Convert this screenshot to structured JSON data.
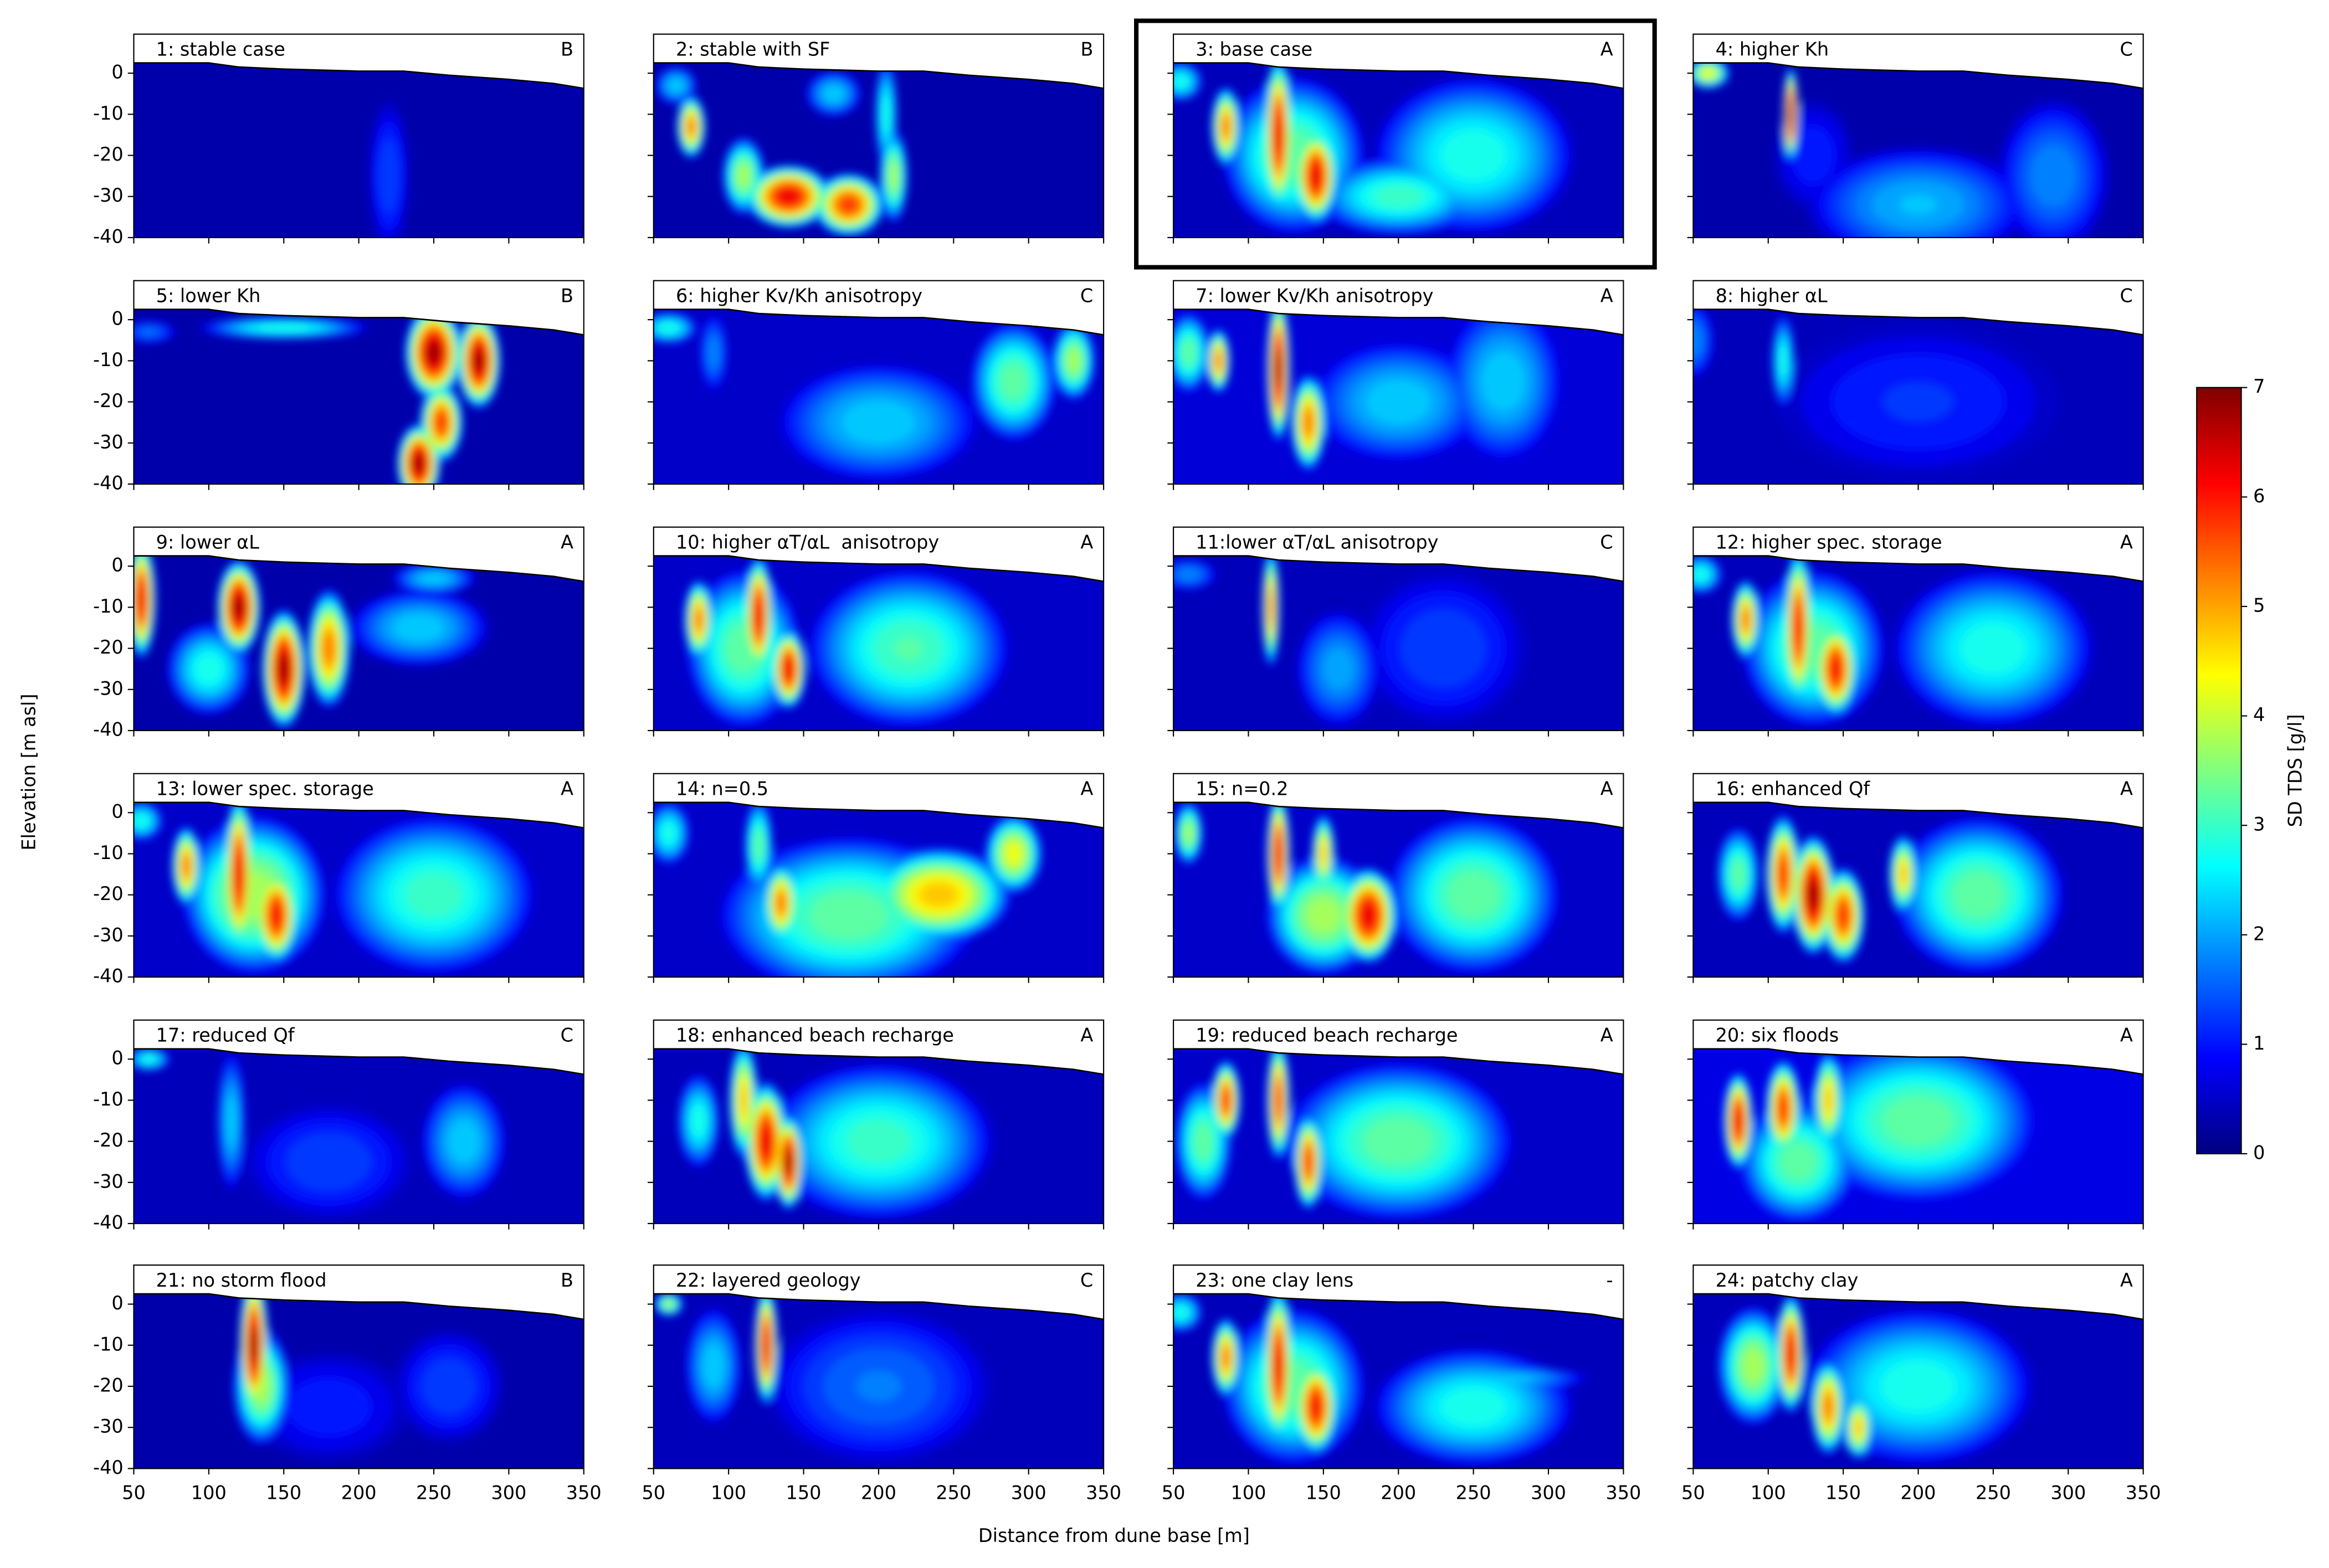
{
  "shared": {
    "xlabel": "Distance from dune base [m]",
    "ylabel": "Elevation [m asl]",
    "xlim": [
      50,
      350
    ],
    "xticks": [
      50,
      100,
      150,
      200,
      250,
      300,
      350
    ],
    "ylim": [
      -40,
      9.5
    ],
    "yticks": [
      0,
      -10,
      -20,
      -30,
      -40
    ],
    "surface": {
      "x": [
        50,
        100,
        120,
        150,
        200,
        230,
        260,
        300,
        330,
        350
      ],
      "y": [
        2.5,
        2.5,
        1.5,
        1,
        0.5,
        0.5,
        -0.5,
        -1.5,
        -2.5,
        -3.7
      ]
    },
    "colorbar": {
      "label": "SD TDS [g/l]",
      "lim": [
        0,
        7
      ],
      "ticks": [
        0,
        1,
        2,
        3,
        4,
        5,
        6,
        7
      ]
    }
  },
  "chart_data": [
    {
      "type": "heatmap",
      "title": "1: stable case",
      "label": "B",
      "background": 0.3,
      "blobs": [
        {
          "x": 220,
          "y": -25,
          "rx": 15,
          "ry": 20,
          "value": 1.5
        }
      ]
    },
    {
      "type": "heatmap",
      "title": "2: stable with SF",
      "label": "B",
      "background": 0.3,
      "blobs": [
        {
          "x": 65,
          "y": -3,
          "rx": 15,
          "ry": 5,
          "value": 2.5
        },
        {
          "x": 75,
          "y": -13,
          "rx": 10,
          "ry": 8,
          "value": 5.5
        },
        {
          "x": 110,
          "y": -25,
          "rx": 15,
          "ry": 10,
          "value": 4
        },
        {
          "x": 140,
          "y": -30,
          "rx": 30,
          "ry": 8,
          "value": 6.5
        },
        {
          "x": 180,
          "y": -32,
          "rx": 25,
          "ry": 8,
          "value": 6
        },
        {
          "x": 210,
          "y": -25,
          "rx": 10,
          "ry": 12,
          "value": 4
        },
        {
          "x": 205,
          "y": -10,
          "rx": 8,
          "ry": 15,
          "value": 3
        },
        {
          "x": 170,
          "y": -5,
          "rx": 20,
          "ry": 6,
          "value": 2.5
        }
      ]
    },
    {
      "type": "heatmap",
      "title": "3: base case",
      "label": "A",
      "background": 0.4,
      "highlighted": true,
      "blobs": [
        {
          "x": 55,
          "y": -2,
          "rx": 15,
          "ry": 5,
          "value": 3
        },
        {
          "x": 130,
          "y": -20,
          "rx": 50,
          "ry": 20,
          "value": 3.5
        },
        {
          "x": 250,
          "y": -20,
          "rx": 70,
          "ry": 20,
          "value": 3
        },
        {
          "x": 200,
          "y": -30,
          "rx": 60,
          "ry": 10,
          "value": 3.2
        },
        {
          "x": 85,
          "y": -13,
          "rx": 10,
          "ry": 10,
          "value": 5.5
        },
        {
          "x": 120,
          "y": -15,
          "rx": 10,
          "ry": 20,
          "value": 6.5
        },
        {
          "x": 145,
          "y": -25,
          "rx": 15,
          "ry": 12,
          "value": 6.5
        }
      ]
    },
    {
      "type": "heatmap",
      "title": "4: higher Kh",
      "label": "C",
      "background": 0.3,
      "blobs": [
        {
          "x": 60,
          "y": 0,
          "rx": 15,
          "ry": 4,
          "value": 4.5
        },
        {
          "x": 130,
          "y": -20,
          "rx": 30,
          "ry": 15,
          "value": 1.2
        },
        {
          "x": 200,
          "y": -32,
          "rx": 80,
          "ry": 15,
          "value": 2.3
        },
        {
          "x": 290,
          "y": -25,
          "rx": 40,
          "ry": 20,
          "value": 2
        },
        {
          "x": 115,
          "y": -10,
          "rx": 5,
          "ry": 12,
          "value": 7
        }
      ]
    },
    {
      "type": "heatmap",
      "title": "5: lower Kh",
      "label": "B",
      "background": 0.3,
      "blobs": [
        {
          "x": 60,
          "y": -3,
          "rx": 20,
          "ry": 3,
          "value": 1.8
        },
        {
          "x": 150,
          "y": -2,
          "rx": 60,
          "ry": 3,
          "value": 3
        },
        {
          "x": 250,
          "y": -8,
          "rx": 20,
          "ry": 12,
          "value": 7
        },
        {
          "x": 280,
          "y": -10,
          "rx": 15,
          "ry": 12,
          "value": 7
        },
        {
          "x": 255,
          "y": -25,
          "rx": 15,
          "ry": 10,
          "value": 6
        },
        {
          "x": 240,
          "y": -35,
          "rx": 15,
          "ry": 10,
          "value": 7
        }
      ]
    },
    {
      "type": "heatmap",
      "title": "6: higher Kv/Kh anisotropy",
      "label": "C",
      "background": 0.5,
      "blobs": [
        {
          "x": 60,
          "y": -2,
          "rx": 20,
          "ry": 4,
          "value": 3
        },
        {
          "x": 90,
          "y": -8,
          "rx": 10,
          "ry": 10,
          "value": 2
        },
        {
          "x": 200,
          "y": -25,
          "rx": 70,
          "ry": 15,
          "value": 2.5
        },
        {
          "x": 290,
          "y": -15,
          "rx": 30,
          "ry": 15,
          "value": 3.5
        },
        {
          "x": 330,
          "y": -10,
          "rx": 15,
          "ry": 10,
          "value": 4
        }
      ]
    },
    {
      "type": "heatmap",
      "title": "7: lower Kv/Kh anisotropy",
      "label": "A",
      "background": 0.6,
      "blobs": [
        {
          "x": 200,
          "y": -20,
          "rx": 60,
          "ry": 15,
          "value": 2.5
        },
        {
          "x": 270,
          "y": -15,
          "rx": 40,
          "ry": 20,
          "value": 2.5
        },
        {
          "x": 60,
          "y": -8,
          "rx": 15,
          "ry": 10,
          "value": 3.5
        },
        {
          "x": 80,
          "y": -10,
          "rx": 8,
          "ry": 8,
          "value": 5.5
        },
        {
          "x": 120,
          "y": -12,
          "rx": 8,
          "ry": 18,
          "value": 7
        },
        {
          "x": 140,
          "y": -25,
          "rx": 12,
          "ry": 12,
          "value": 5.5
        }
      ]
    },
    {
      "type": "heatmap",
      "title": "8: higher αL",
      "label": "C",
      "background": 0.4,
      "blobs": [
        {
          "x": 50,
          "y": -5,
          "rx": 15,
          "ry": 10,
          "value": 2
        },
        {
          "x": 110,
          "y": -10,
          "rx": 8,
          "ry": 12,
          "value": 3
        },
        {
          "x": 200,
          "y": -20,
          "rx": 100,
          "ry": 20,
          "value": 1.3
        }
      ]
    },
    {
      "type": "heatmap",
      "title": "9: lower αL",
      "label": "A",
      "background": 0.3,
      "blobs": [
        {
          "x": 100,
          "y": -25,
          "rx": 30,
          "ry": 12,
          "value": 3
        },
        {
          "x": 240,
          "y": -15,
          "rx": 50,
          "ry": 10,
          "value": 2.5
        },
        {
          "x": 250,
          "y": -3,
          "rx": 30,
          "ry": 4,
          "value": 2.5
        },
        {
          "x": 55,
          "y": -8,
          "rx": 10,
          "ry": 15,
          "value": 6.5
        },
        {
          "x": 120,
          "y": -10,
          "rx": 15,
          "ry": 12,
          "value": 7
        },
        {
          "x": 150,
          "y": -25,
          "rx": 15,
          "ry": 15,
          "value": 7
        },
        {
          "x": 180,
          "y": -20,
          "rx": 15,
          "ry": 15,
          "value": 5.5
        }
      ]
    },
    {
      "type": "heatmap",
      "title": "10: higher αT/αL  anisotropy",
      "label": "A",
      "background": 0.5,
      "blobs": [
        {
          "x": 110,
          "y": -20,
          "rx": 40,
          "ry": 20,
          "value": 3.5
        },
        {
          "x": 220,
          "y": -20,
          "rx": 70,
          "ry": 20,
          "value": 3.3
        },
        {
          "x": 80,
          "y": -13,
          "rx": 10,
          "ry": 10,
          "value": 5.5
        },
        {
          "x": 120,
          "y": -12,
          "rx": 10,
          "ry": 15,
          "value": 6.5
        },
        {
          "x": 140,
          "y": -25,
          "rx": 12,
          "ry": 10,
          "value": 6.5
        }
      ]
    },
    {
      "type": "heatmap",
      "title": "11:lower αT/αL anisotropy",
      "label": "C",
      "background": 0.4,
      "blobs": [
        {
          "x": 60,
          "y": -2,
          "rx": 20,
          "ry": 4,
          "value": 2
        },
        {
          "x": 160,
          "y": -25,
          "rx": 30,
          "ry": 15,
          "value": 2.2
        },
        {
          "x": 230,
          "y": -20,
          "rx": 60,
          "ry": 20,
          "value": 1.5
        },
        {
          "x": 115,
          "y": -10,
          "rx": 6,
          "ry": 15,
          "value": 5.5
        }
      ]
    },
    {
      "type": "heatmap",
      "title": "12: higher spec. storage",
      "label": "A",
      "background": 0.4,
      "blobs": [
        {
          "x": 55,
          "y": -2,
          "rx": 15,
          "ry": 5,
          "value": 3
        },
        {
          "x": 130,
          "y": -20,
          "rx": 50,
          "ry": 20,
          "value": 3.5
        },
        {
          "x": 250,
          "y": -20,
          "rx": 70,
          "ry": 20,
          "value": 3
        },
        {
          "x": 85,
          "y": -13,
          "rx": 10,
          "ry": 10,
          "value": 5.5
        },
        {
          "x": 120,
          "y": -15,
          "rx": 10,
          "ry": 20,
          "value": 6.3
        },
        {
          "x": 145,
          "y": -25,
          "rx": 15,
          "ry": 12,
          "value": 6.3
        }
      ]
    },
    {
      "type": "heatmap",
      "title": "13: lower spec. storage",
      "label": "A",
      "background": 0.5,
      "blobs": [
        {
          "x": 55,
          "y": -2,
          "rx": 15,
          "ry": 5,
          "value": 3
        },
        {
          "x": 130,
          "y": -20,
          "rx": 50,
          "ry": 20,
          "value": 4
        },
        {
          "x": 250,
          "y": -20,
          "rx": 70,
          "ry": 20,
          "value": 3.2
        },
        {
          "x": 85,
          "y": -13,
          "rx": 10,
          "ry": 10,
          "value": 5.5
        },
        {
          "x": 120,
          "y": -15,
          "rx": 10,
          "ry": 20,
          "value": 6.5
        },
        {
          "x": 145,
          "y": -25,
          "rx": 15,
          "ry": 12,
          "value": 6.3
        }
      ]
    },
    {
      "type": "heatmap",
      "title": "14: n=0.5",
      "label": "A",
      "background": 0.5,
      "blobs": [
        {
          "x": 180,
          "y": -25,
          "rx": 90,
          "ry": 20,
          "value": 3.5
        },
        {
          "x": 60,
          "y": -5,
          "rx": 15,
          "ry": 8,
          "value": 3
        },
        {
          "x": 120,
          "y": -8,
          "rx": 10,
          "ry": 12,
          "value": 3.5
        },
        {
          "x": 135,
          "y": -22,
          "rx": 12,
          "ry": 10,
          "value": 5.5
        },
        {
          "x": 240,
          "y": -20,
          "rx": 50,
          "ry": 12,
          "value": 5
        },
        {
          "x": 290,
          "y": -10,
          "rx": 20,
          "ry": 10,
          "value": 4.5
        }
      ]
    },
    {
      "type": "heatmap",
      "title": "15: n=0.2",
      "label": "A",
      "background": 0.5,
      "blobs": [
        {
          "x": 150,
          "y": -25,
          "rx": 40,
          "ry": 15,
          "value": 4
        },
        {
          "x": 250,
          "y": -20,
          "rx": 60,
          "ry": 20,
          "value": 3.5
        },
        {
          "x": 60,
          "y": -5,
          "rx": 10,
          "ry": 8,
          "value": 4
        },
        {
          "x": 120,
          "y": -10,
          "rx": 8,
          "ry": 15,
          "value": 6.5
        },
        {
          "x": 150,
          "y": -10,
          "rx": 8,
          "ry": 10,
          "value": 5
        },
        {
          "x": 180,
          "y": -25,
          "rx": 20,
          "ry": 12,
          "value": 6.5
        }
      ]
    },
    {
      "type": "heatmap",
      "title": "16: enhanced Qf",
      "label": "A",
      "background": 0.4,
      "blobs": [
        {
          "x": 80,
          "y": -15,
          "rx": 15,
          "ry": 12,
          "value": 3.5
        },
        {
          "x": 240,
          "y": -20,
          "rx": 60,
          "ry": 20,
          "value": 3.5
        },
        {
          "x": 190,
          "y": -15,
          "rx": 10,
          "ry": 10,
          "value": 5
        },
        {
          "x": 110,
          "y": -15,
          "rx": 12,
          "ry": 15,
          "value": 6
        },
        {
          "x": 150,
          "y": -25,
          "rx": 15,
          "ry": 12,
          "value": 6
        },
        {
          "x": 130,
          "y": -20,
          "rx": 15,
          "ry": 15,
          "value": 7
        }
      ]
    },
    {
      "type": "heatmap",
      "title": "17: reduced Qf",
      "label": "C",
      "background": 0.4,
      "blobs": [
        {
          "x": 60,
          "y": 0,
          "rx": 15,
          "ry": 3,
          "value": 3
        },
        {
          "x": 115,
          "y": -15,
          "rx": 10,
          "ry": 18,
          "value": 2.5
        },
        {
          "x": 180,
          "y": -25,
          "rx": 60,
          "ry": 15,
          "value": 1.5
        },
        {
          "x": 270,
          "y": -20,
          "rx": 30,
          "ry": 15,
          "value": 2.5
        }
      ]
    },
    {
      "type": "heatmap",
      "title": "18: enhanced beach recharge",
      "label": "A",
      "background": 0.4,
      "blobs": [
        {
          "x": 200,
          "y": -20,
          "rx": 80,
          "ry": 20,
          "value": 3.2
        },
        {
          "x": 80,
          "y": -15,
          "rx": 15,
          "ry": 12,
          "value": 3
        },
        {
          "x": 110,
          "y": -10,
          "rx": 10,
          "ry": 15,
          "value": 5
        },
        {
          "x": 125,
          "y": -20,
          "rx": 15,
          "ry": 15,
          "value": 6.5
        },
        {
          "x": 140,
          "y": -25,
          "rx": 10,
          "ry": 12,
          "value": 7
        }
      ]
    },
    {
      "type": "heatmap",
      "title": "19: reduced beach recharge",
      "label": "A",
      "background": 0.5,
      "blobs": [
        {
          "x": 200,
          "y": -20,
          "rx": 80,
          "ry": 20,
          "value": 3.5
        },
        {
          "x": 70,
          "y": -20,
          "rx": 20,
          "ry": 15,
          "value": 3.5
        },
        {
          "x": 85,
          "y": -10,
          "rx": 10,
          "ry": 10,
          "value": 6
        },
        {
          "x": 120,
          "y": -10,
          "rx": 8,
          "ry": 15,
          "value": 6
        },
        {
          "x": 140,
          "y": -25,
          "rx": 10,
          "ry": 12,
          "value": 6
        }
      ]
    },
    {
      "type": "heatmap",
      "title": "20: six floods",
      "label": "A",
      "background": 0.7,
      "blobs": [
        {
          "x": 200,
          "y": -15,
          "rx": 80,
          "ry": 20,
          "value": 3.5
        },
        {
          "x": 120,
          "y": -25,
          "rx": 40,
          "ry": 15,
          "value": 3.5
        },
        {
          "x": 80,
          "y": -15,
          "rx": 10,
          "ry": 12,
          "value": 6.5
        },
        {
          "x": 110,
          "y": -12,
          "rx": 12,
          "ry": 12,
          "value": 6
        },
        {
          "x": 140,
          "y": -10,
          "rx": 10,
          "ry": 12,
          "value": 5
        }
      ]
    },
    {
      "type": "heatmap",
      "title": "21: no storm flood",
      "label": "B",
      "background": 0.3,
      "blobs": [
        {
          "x": 180,
          "y": -25,
          "rx": 60,
          "ry": 15,
          "value": 1.2
        },
        {
          "x": 260,
          "y": -20,
          "rx": 40,
          "ry": 15,
          "value": 1.5
        },
        {
          "x": 135,
          "y": -20,
          "rx": 20,
          "ry": 15,
          "value": 4
        },
        {
          "x": 130,
          "y": -10,
          "rx": 10,
          "ry": 18,
          "value": 7
        }
      ]
    },
    {
      "type": "heatmap",
      "title": "22: layered geology",
      "label": "C",
      "background": 0.4,
      "blobs": [
        {
          "x": 60,
          "y": 0,
          "rx": 10,
          "ry": 3,
          "value": 4
        },
        {
          "x": 90,
          "y": -15,
          "rx": 20,
          "ry": 15,
          "value": 2.5
        },
        {
          "x": 200,
          "y": -20,
          "rx": 80,
          "ry": 20,
          "value": 1.8
        },
        {
          "x": 125,
          "y": -10,
          "rx": 8,
          "ry": 15,
          "value": 6.5
        }
      ]
    },
    {
      "type": "heatmap",
      "title": "23: one clay lens",
      "label": "-",
      "background": 0.4,
      "blobs": [
        {
          "x": 55,
          "y": -2,
          "rx": 15,
          "ry": 5,
          "value": 3
        },
        {
          "x": 130,
          "y": -20,
          "rx": 50,
          "ry": 20,
          "value": 3.5
        },
        {
          "x": 250,
          "y": -25,
          "rx": 70,
          "ry": 15,
          "value": 3
        },
        {
          "x": 270,
          "y": -18,
          "rx": 60,
          "ry": 3,
          "value": 2.5
        },
        {
          "x": 85,
          "y": -13,
          "rx": 10,
          "ry": 10,
          "value": 5.5
        },
        {
          "x": 120,
          "y": -15,
          "rx": 10,
          "ry": 20,
          "value": 6.5
        },
        {
          "x": 145,
          "y": -25,
          "rx": 15,
          "ry": 12,
          "value": 6.3
        }
      ]
    },
    {
      "type": "heatmap",
      "title": "24: patchy clay",
      "label": "A",
      "background": 0.4,
      "blobs": [
        {
          "x": 200,
          "y": -20,
          "rx": 80,
          "ry": 20,
          "value": 3
        },
        {
          "x": 90,
          "y": -15,
          "rx": 25,
          "ry": 15,
          "value": 4
        },
        {
          "x": 115,
          "y": -12,
          "rx": 10,
          "ry": 15,
          "value": 6.5
        },
        {
          "x": 140,
          "y": -25,
          "rx": 12,
          "ry": 12,
          "value": 5.5
        },
        {
          "x": 160,
          "y": -30,
          "rx": 10,
          "ry": 8,
          "value": 5
        }
      ]
    }
  ]
}
